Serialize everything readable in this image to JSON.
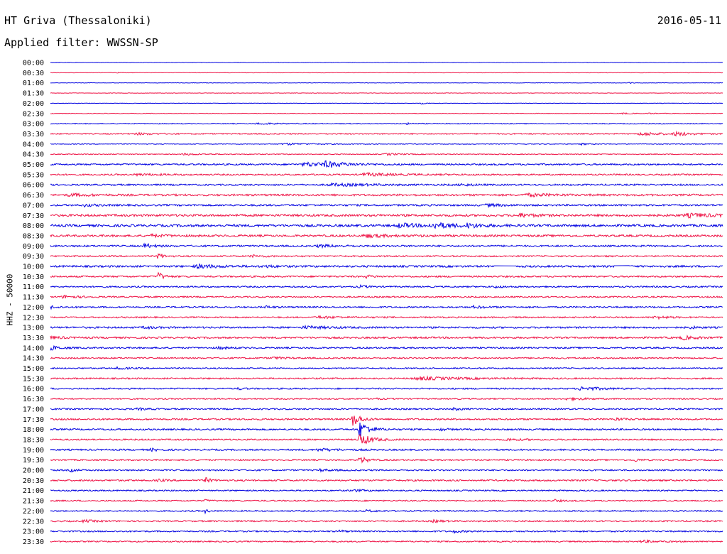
{
  "header": {
    "station": "HT Griva (Thessaloniki)",
    "filter": "Applied filter: WWSSN-SP",
    "date": "2016-05-11"
  },
  "axis_label": "HHZ - 50000",
  "colors": {
    "trace_a": "#0000e0",
    "trace_b": "#ee1144"
  },
  "traces": [
    {
      "time": "00:00",
      "amp": 0.3,
      "bursts": []
    },
    {
      "time": "00:30",
      "amp": 0.3,
      "bursts": [
        [
          0.1,
          0.4,
          0.3
        ]
      ],
      "gaps": [
        [
          0.08,
          0.09
        ]
      ]
    },
    {
      "time": "01:00",
      "amp": 0.3,
      "bursts": [
        [
          0.86,
          0.9,
          0.25
        ]
      ]
    },
    {
      "time": "01:30",
      "amp": 0.3,
      "bursts": []
    },
    {
      "time": "02:00",
      "amp": 0.3,
      "bursts": [
        [
          0.55,
          1.2,
          0.3
        ]
      ]
    },
    {
      "time": "02:30",
      "amp": 0.4,
      "bursts": [
        [
          0.85,
          0.9,
          0.6
        ],
        [
          0.89,
          0.9,
          0.3
        ]
      ]
    },
    {
      "time": "03:00",
      "amp": 0.6,
      "bursts": [
        [
          0.31,
          1.1,
          1.0
        ],
        [
          0.53,
          0.9,
          0.4
        ]
      ]
    },
    {
      "time": "03:30",
      "amp": 0.8,
      "bursts": [
        [
          0.13,
          1.2,
          1.0
        ],
        [
          0.88,
          2.2,
          1.2
        ],
        [
          0.93,
          2.4,
          0.8
        ]
      ]
    },
    {
      "time": "04:00",
      "amp": 0.5,
      "bursts": [
        [
          0.35,
          1.3,
          1.4
        ],
        [
          0.79,
          1.1,
          0.4
        ]
      ]
    },
    {
      "time": "04:30",
      "amp": 0.6,
      "bursts": [
        [
          0.2,
          1.1,
          1.0
        ],
        [
          0.5,
          1.3,
          0.8
        ]
      ]
    },
    {
      "time": "05:00",
      "amp": 1.1,
      "bursts": [
        [
          0.38,
          2.6,
          1.6
        ],
        [
          0.41,
          3.2,
          1.0
        ]
      ]
    },
    {
      "time": "05:30",
      "amp": 1.0,
      "bursts": [
        [
          0.47,
          1.8,
          2.0
        ],
        [
          0.13,
          1.1,
          1.4
        ]
      ]
    },
    {
      "time": "06:00",
      "amp": 1.1,
      "bursts": [
        [
          0.42,
          1.4,
          2.5
        ],
        [
          0.61,
          1.5,
          0.6
        ]
      ]
    },
    {
      "time": "06:30",
      "amp": 1.3,
      "bursts": [
        [
          0.03,
          1.6,
          1.2
        ],
        [
          0.71,
          1.8,
          1.4
        ]
      ]
    },
    {
      "time": "07:00",
      "amp": 1.2,
      "bursts": [
        [
          0.05,
          1.5,
          0.6
        ],
        [
          0.65,
          1.6,
          0.8
        ]
      ]
    },
    {
      "time": "07:30",
      "amp": 1.5,
      "bursts": [
        [
          0.7,
          2.2,
          0.8
        ],
        [
          0.95,
          2.2,
          1.6
        ]
      ]
    },
    {
      "time": "08:00",
      "amp": 1.6,
      "bursts": [
        [
          0.52,
          2.8,
          1.0
        ],
        [
          0.57,
          3.4,
          1.2
        ],
        [
          0.62,
          2.2,
          0.8
        ]
      ]
    },
    {
      "time": "08:30",
      "amp": 1.4,
      "bursts": [
        [
          0.47,
          1.8,
          1.5
        ],
        [
          0.15,
          1.4,
          0.8
        ]
      ]
    },
    {
      "time": "09:00",
      "amp": 1.2,
      "bursts": [
        [
          0.14,
          3.0,
          0.5
        ],
        [
          0.4,
          1.4,
          1.2
        ]
      ]
    },
    {
      "time": "09:30",
      "amp": 1.0,
      "bursts": [
        [
          0.16,
          4.5,
          0.3
        ],
        [
          0.3,
          1.3,
          0.8
        ]
      ]
    },
    {
      "time": "10:00",
      "amp": 1.3,
      "bursts": [
        [
          0.22,
          2.2,
          1.4
        ],
        [
          0.32,
          1.6,
          0.5
        ]
      ],
      "gaps": [
        [
          0.66,
          0.69
        ],
        [
          0.84,
          0.86
        ]
      ]
    },
    {
      "time": "10:30",
      "amp": 1.1,
      "bursts": [
        [
          0.16,
          6.0,
          0.3
        ],
        [
          0.47,
          1.8,
          0.4
        ]
      ]
    },
    {
      "time": "11:00",
      "amp": 1.0,
      "bursts": [
        [
          0.46,
          1.6,
          0.5
        ],
        [
          0.66,
          1.3,
          0.6
        ]
      ]
    },
    {
      "time": "11:30",
      "amp": 1.0,
      "bursts": [
        [
          0.02,
          2.0,
          0.8
        ]
      ]
    },
    {
      "time": "12:00",
      "amp": 1.1,
      "bursts": [
        [
          0.0,
          2.0,
          0.5
        ],
        [
          0.32,
          1.4,
          0.4
        ],
        [
          0.63,
          1.5,
          0.6
        ]
      ]
    },
    {
      "time": "12:30",
      "amp": 1.0,
      "bursts": [
        [
          0.4,
          1.4,
          1.2
        ],
        [
          0.9,
          1.8,
          0.8
        ]
      ]
    },
    {
      "time": "13:00",
      "amp": 1.2,
      "bursts": [
        [
          0.38,
          1.6,
          1.4
        ],
        [
          0.14,
          1.4,
          0.6
        ],
        [
          0.95,
          1.5,
          0.4
        ]
      ]
    },
    {
      "time": "13:30",
      "amp": 1.2,
      "bursts": [
        [
          0.0,
          2.0,
          0.6
        ],
        [
          0.94,
          2.4,
          0.8
        ]
      ]
    },
    {
      "time": "14:00",
      "amp": 1.1,
      "bursts": [
        [
          0.0,
          3.2,
          0.5
        ],
        [
          0.25,
          1.5,
          0.6
        ]
      ]
    },
    {
      "time": "14:30",
      "amp": 1.0,
      "bursts": [
        [
          0.33,
          1.3,
          0.8
        ]
      ]
    },
    {
      "time": "15:00",
      "amp": 0.9,
      "bursts": [
        [
          0.1,
          1.4,
          0.6
        ]
      ]
    },
    {
      "time": "15:30",
      "amp": 1.0,
      "bursts": [
        [
          0.55,
          2.0,
          2.5
        ]
      ]
    },
    {
      "time": "16:00",
      "amp": 1.0,
      "bursts": [
        [
          0.79,
          2.4,
          1.2
        ],
        [
          0.28,
          1.3,
          0.4
        ]
      ]
    },
    {
      "time": "16:30",
      "amp": 0.9,
      "bursts": [
        [
          0.77,
          1.6,
          1.0
        ],
        [
          0.48,
          1.2,
          0.4
        ]
      ]
    },
    {
      "time": "17:00",
      "amp": 1.0,
      "bursts": [
        [
          0.6,
          1.5,
          0.4
        ],
        [
          0.13,
          1.2,
          0.6
        ]
      ]
    },
    {
      "time": "17:30",
      "amp": 1.1,
      "bursts": [
        [
          0.45,
          10.0,
          0.4
        ],
        [
          0.84,
          1.6,
          0.6
        ]
      ]
    },
    {
      "time": "18:00",
      "amp": 1.1,
      "bursts": [
        [
          0.46,
          12.0,
          0.5
        ],
        [
          0.58,
          1.5,
          0.4
        ]
      ]
    },
    {
      "time": "18:30",
      "amp": 1.0,
      "bursts": [
        [
          0.46,
          9.0,
          0.6
        ],
        [
          0.68,
          1.3,
          0.8
        ]
      ]
    },
    {
      "time": "19:00",
      "amp": 1.1,
      "bursts": [
        [
          0.4,
          1.6,
          1.2
        ],
        [
          0.15,
          1.6,
          0.4
        ]
      ]
    },
    {
      "time": "19:30",
      "amp": 1.0,
      "bursts": [
        [
          0.46,
          5.0,
          0.4
        ],
        [
          0.87,
          2.0,
          0.3
        ]
      ]
    },
    {
      "time": "20:00",
      "amp": 1.0,
      "bursts": [
        [
          0.03,
          2.0,
          0.3
        ],
        [
          0.4,
          1.3,
          0.8
        ]
      ]
    },
    {
      "time": "20:30",
      "amp": 1.1,
      "bursts": [
        [
          0.23,
          3.5,
          0.3
        ],
        [
          0.16,
          1.6,
          0.4
        ]
      ]
    },
    {
      "time": "21:00",
      "amp": 0.9,
      "bursts": [
        [
          0.45,
          1.3,
          0.8
        ]
      ]
    },
    {
      "time": "21:30",
      "amp": 0.9,
      "bursts": [
        [
          0.75,
          1.5,
          0.4
        ],
        [
          0.23,
          1.3,
          0.3
        ]
      ]
    },
    {
      "time": "22:00",
      "amp": 0.9,
      "bursts": [
        [
          0.23,
          2.5,
          0.2
        ],
        [
          0.47,
          1.2,
          0.6
        ]
      ]
    },
    {
      "time": "22:30",
      "amp": 1.0,
      "bursts": [
        [
          0.05,
          1.6,
          0.6
        ],
        [
          0.57,
          1.3,
          0.6
        ]
      ]
    },
    {
      "time": "23:00",
      "amp": 1.0,
      "bursts": [
        [
          0.43,
          1.8,
          0.3
        ],
        [
          0.6,
          1.6,
          0.5
        ]
      ]
    },
    {
      "time": "23:30",
      "amp": 0.9,
      "bursts": [
        [
          0.88,
          1.6,
          0.8
        ]
      ]
    }
  ]
}
